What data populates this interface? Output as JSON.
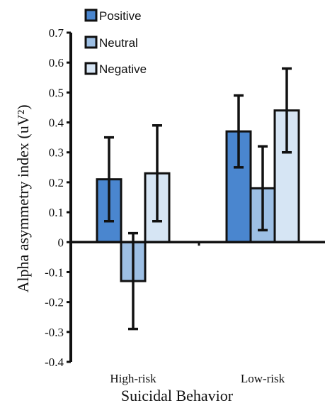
{
  "chart_data": {
    "type": "bar",
    "xlabel": "Suicidal Behavior",
    "ylabel": "Alpha asymmetry index (uV²)",
    "ylim": [
      -0.4,
      0.7
    ],
    "yticks": [
      0.7,
      0.6,
      0.5,
      0.4,
      0.3,
      0.2,
      0.1,
      0,
      -0.1,
      -0.2,
      -0.3,
      -0.4
    ],
    "categories": [
      "High-risk",
      "Low-risk"
    ],
    "series": [
      {
        "name": "Positive",
        "color": "#4a86cf",
        "values": [
          0.21,
          0.37
        ],
        "error": [
          0.14,
          0.12
        ]
      },
      {
        "name": "Neutral",
        "color": "#9dbfe4",
        "values": [
          -0.13,
          0.18
        ],
        "error": [
          0.16,
          0.14
        ]
      },
      {
        "name": "Negative",
        "color": "#d6e5f4",
        "values": [
          0.23,
          0.44
        ],
        "error": [
          0.16,
          0.14
        ]
      }
    ],
    "legend_position": "top-left",
    "grid": false
  }
}
